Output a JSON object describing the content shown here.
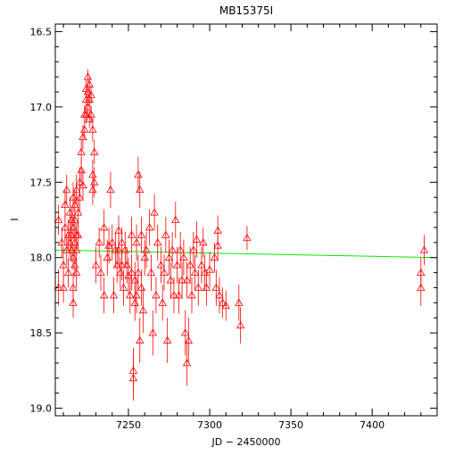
{
  "chart_data": {
    "type": "scatter",
    "title": "MB15375I",
    "xlabel": "JD − 2450000",
    "ylabel": "I",
    "xlim": [
      7205,
      7440
    ],
    "ylim": [
      19.05,
      16.45
    ],
    "y_inverted": true,
    "x_ticks": [
      7250,
      7300,
      7350,
      7400
    ],
    "y_ticks": [
      16.5,
      17.0,
      17.5,
      18.0,
      18.5,
      19.0
    ],
    "x_tick_labels": [
      "7250",
      "7300",
      "7350",
      "7400"
    ],
    "y_tick_labels": [
      "16.5",
      "17.0",
      "17.5",
      "18.0",
      "18.5",
      "19.0"
    ],
    "grid": false,
    "legend": "none",
    "marker": "open-triangle",
    "point_color": "#ff0000",
    "fit_color": "#00ee00",
    "fit_line": {
      "x": [
        7205,
        7440
      ],
      "y": [
        17.95,
        18.0
      ]
    },
    "series": [
      {
        "points": [
          [
            7207,
            17.75,
            0.1
          ],
          [
            7207,
            18.2,
            0.12
          ],
          [
            7209,
            17.9,
            0.1
          ],
          [
            7210,
            18.05,
            0.12
          ],
          [
            7210,
            18.2,
            0.1
          ],
          [
            7211,
            17.8,
            0.1
          ],
          [
            7211,
            17.65,
            0.1
          ],
          [
            7212,
            17.55,
            0.1
          ],
          [
            7212,
            17.95,
            0.1
          ],
          [
            7213,
            17.85,
            0.1
          ],
          [
            7213,
            18.1,
            0.1
          ],
          [
            7214,
            17.7,
            0.1
          ],
          [
            7214,
            17.9,
            0.1
          ],
          [
            7215,
            17.75,
            0.08
          ],
          [
            7215,
            17.95,
            0.08
          ],
          [
            7215,
            17.85,
            0.08
          ],
          [
            7216,
            17.6,
            0.1
          ],
          [
            7216,
            17.8,
            0.08
          ],
          [
            7216,
            18.0,
            0.08
          ],
          [
            7216,
            18.2,
            0.1
          ],
          [
            7216,
            18.3,
            0.1
          ],
          [
            7217,
            17.65,
            0.1
          ],
          [
            7217,
            17.9,
            0.08
          ],
          [
            7217,
            18.05,
            0.08
          ],
          [
            7217,
            17.75,
            0.08
          ],
          [
            7218,
            17.55,
            0.1
          ],
          [
            7218,
            17.85,
            0.08
          ],
          [
            7218,
            17.95,
            0.08
          ],
          [
            7218,
            18.1,
            0.1
          ],
          [
            7219,
            17.7,
            0.1
          ],
          [
            7219,
            17.85,
            0.1
          ],
          [
            7220,
            17.5,
            0.1
          ],
          [
            7220,
            17.6,
            0.1
          ],
          [
            7221,
            17.3,
            0.08
          ],
          [
            7221,
            17.42,
            0.08
          ],
          [
            7222,
            17.2,
            0.08
          ],
          [
            7222,
            17.52,
            0.1
          ],
          [
            7223,
            17.05,
            0.06
          ],
          [
            7223,
            17.15,
            0.06
          ],
          [
            7224,
            16.95,
            0.06
          ],
          [
            7224,
            17.05,
            0.06
          ],
          [
            7224,
            16.88,
            0.06
          ],
          [
            7225,
            16.8,
            0.05
          ],
          [
            7225,
            16.9,
            0.05
          ],
          [
            7225,
            17.0,
            0.06
          ],
          [
            7226,
            16.85,
            0.05
          ],
          [
            7226,
            16.95,
            0.05
          ],
          [
            7226,
            17.08,
            0.06
          ],
          [
            7227,
            16.92,
            0.06
          ],
          [
            7227,
            17.05,
            0.06
          ],
          [
            7228,
            17.15,
            0.08
          ],
          [
            7228,
            17.45,
            0.1
          ],
          [
            7228,
            17.55,
            0.1
          ],
          [
            7229,
            17.3,
            0.08
          ],
          [
            7229,
            17.5,
            0.1
          ],
          [
            7230,
            18.05,
            0.12
          ],
          [
            7232,
            17.9,
            0.1
          ],
          [
            7233,
            18.1,
            0.12
          ],
          [
            7235,
            17.8,
            0.12
          ],
          [
            7235,
            18.25,
            0.12
          ],
          [
            7237,
            18.0,
            0.12
          ],
          [
            7238,
            17.92,
            0.12
          ],
          [
            7239,
            17.55,
            0.12
          ],
          [
            7240,
            17.9,
            0.12
          ],
          [
            7241,
            18.25,
            0.12
          ],
          [
            7242,
            17.95,
            0.12
          ],
          [
            7243,
            18.05,
            0.12
          ],
          [
            7244,
            17.82,
            0.1
          ],
          [
            7244,
            17.95,
            0.1
          ],
          [
            7245,
            18.1,
            0.1
          ],
          [
            7246,
            17.9,
            0.1
          ],
          [
            7246,
            18.05,
            0.1
          ],
          [
            7247,
            18.2,
            0.12
          ],
          [
            7248,
            17.95,
            0.12
          ],
          [
            7249,
            18.05,
            0.12
          ],
          [
            7250,
            18.12,
            0.12
          ],
          [
            7251,
            18.25,
            0.12
          ],
          [
            7252,
            17.85,
            0.12
          ],
          [
            7252,
            18.1,
            0.12
          ],
          [
            7253,
            18.75,
            0.15
          ],
          [
            7253,
            18.8,
            0.15
          ],
          [
            7254,
            18.3,
            0.12
          ],
          [
            7254,
            18.15,
            0.12
          ],
          [
            7255,
            17.9,
            0.12
          ],
          [
            7255,
            18.25,
            0.12
          ],
          [
            7256,
            17.45,
            0.12
          ],
          [
            7256,
            18.1,
            0.12
          ],
          [
            7257,
            17.55,
            0.12
          ],
          [
            7257,
            18.55,
            0.15
          ],
          [
            7258,
            18.2,
            0.12
          ],
          [
            7258,
            17.85,
            0.12
          ],
          [
            7259,
            18.35,
            0.15
          ],
          [
            7260,
            18.0,
            0.12
          ],
          [
            7261,
            17.95,
            0.12
          ],
          [
            7263,
            17.8,
            0.12
          ],
          [
            7264,
            18.1,
            0.12
          ],
          [
            7265,
            18.5,
            0.15
          ],
          [
            7266,
            17.7,
            0.12
          ],
          [
            7267,
            18.25,
            0.12
          ],
          [
            7268,
            17.9,
            0.12
          ],
          [
            7270,
            18.05,
            0.12
          ],
          [
            7271,
            18.3,
            0.12
          ],
          [
            7272,
            18.1,
            0.12
          ],
          [
            7273,
            17.85,
            0.12
          ],
          [
            7274,
            18.55,
            0.15
          ],
          [
            7275,
            18.0,
            0.12
          ],
          [
            7276,
            18.15,
            0.12
          ],
          [
            7277,
            17.95,
            0.12
          ],
          [
            7278,
            18.25,
            0.12
          ],
          [
            7279,
            17.75,
            0.12
          ],
          [
            7280,
            18.05,
            0.12
          ],
          [
            7281,
            18.25,
            0.12
          ],
          [
            7282,
            17.95,
            0.12
          ],
          [
            7283,
            18.15,
            0.12
          ],
          [
            7284,
            18.0,
            0.12
          ],
          [
            7285,
            18.5,
            0.15
          ],
          [
            7286,
            18.7,
            0.15
          ],
          [
            7286,
            18.15,
            0.12
          ],
          [
            7287,
            18.55,
            0.15
          ],
          [
            7288,
            18.05,
            0.12
          ],
          [
            7289,
            18.25,
            0.12
          ],
          [
            7290,
            17.95,
            0.12
          ],
          [
            7291,
            18.1,
            0.12
          ],
          [
            7292,
            17.88,
            0.12
          ],
          [
            7293,
            18.2,
            0.12
          ],
          [
            7295,
            18.05,
            0.12
          ],
          [
            7296,
            17.9,
            0.1
          ],
          [
            7297,
            18.1,
            0.12
          ],
          [
            7298,
            18.2,
            0.12
          ],
          [
            7300,
            18.08,
            0.12
          ],
          [
            7303,
            18.0,
            0.1
          ],
          [
            7304,
            18.2,
            0.12
          ],
          [
            7305,
            17.82,
            0.1
          ],
          [
            7305,
            17.92,
            0.1
          ],
          [
            7306,
            18.25,
            0.12
          ],
          [
            7308,
            18.3,
            0.1
          ],
          [
            7310,
            18.32,
            0.1
          ],
          [
            7318,
            18.3,
            0.12
          ],
          [
            7319,
            18.45,
            0.12
          ],
          [
            7323,
            17.87,
            0.08
          ],
          [
            7430,
            18.1,
            0.1
          ],
          [
            7430,
            18.2,
            0.12
          ],
          [
            7432,
            17.95,
            0.1
          ]
        ]
      }
    ]
  }
}
